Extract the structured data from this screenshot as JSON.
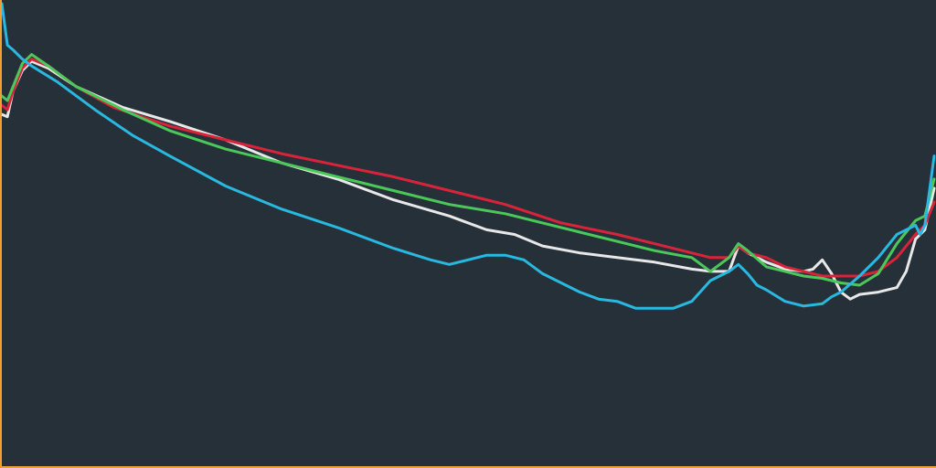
{
  "colors": {
    "background": "#263038",
    "axis": "#f0a030"
  },
  "chart_data": {
    "type": "line",
    "title": "",
    "xlabel": "",
    "ylabel": "",
    "grid": false,
    "legend": "none",
    "xlim": [
      0,
      100
    ],
    "ylim": [
      0,
      100
    ],
    "series": [
      {
        "color": "#e8e8e8",
        "points": [
          [
            0,
            76
          ],
          [
            0.6,
            75.5
          ],
          [
            1.2,
            81
          ],
          [
            2.2,
            85.5
          ],
          [
            3.2,
            87.5
          ],
          [
            5,
            86
          ],
          [
            8,
            82
          ],
          [
            13,
            77.5
          ],
          [
            18,
            74.5
          ],
          [
            24,
            70.5
          ],
          [
            30,
            65.5
          ],
          [
            36,
            62
          ],
          [
            42,
            57.5
          ],
          [
            48,
            54
          ],
          [
            52,
            51
          ],
          [
            55,
            50
          ],
          [
            58,
            47.5
          ],
          [
            62,
            46
          ],
          [
            66,
            45
          ],
          [
            70,
            44
          ],
          [
            74,
            42.5
          ],
          [
            76,
            42
          ],
          [
            78,
            42
          ],
          [
            79,
            47.5
          ],
          [
            80,
            46
          ],
          [
            82,
            44
          ],
          [
            84,
            42.5
          ],
          [
            86,
            42
          ],
          [
            87,
            42.5
          ],
          [
            88,
            44.5
          ],
          [
            89,
            41.5
          ],
          [
            90,
            37.5
          ],
          [
            91,
            36
          ],
          [
            92,
            37
          ],
          [
            94,
            37.5
          ],
          [
            96,
            38.5
          ],
          [
            97,
            42
          ],
          [
            98,
            49
          ],
          [
            99,
            51
          ],
          [
            100,
            60
          ]
        ]
      },
      {
        "color": "#d8243a",
        "points": [
          [
            0,
            78
          ],
          [
            0.6,
            77
          ],
          [
            1.2,
            81
          ],
          [
            2.2,
            86
          ],
          [
            3.2,
            88
          ],
          [
            5,
            86.5
          ],
          [
            8,
            82
          ],
          [
            12,
            77.5
          ],
          [
            18,
            73.5
          ],
          [
            24,
            70.5
          ],
          [
            30,
            67.5
          ],
          [
            36,
            65
          ],
          [
            42,
            62.5
          ],
          [
            48,
            59.5
          ],
          [
            54,
            56.5
          ],
          [
            60,
            52.5
          ],
          [
            66,
            50
          ],
          [
            70,
            48
          ],
          [
            74,
            46
          ],
          [
            76,
            45
          ],
          [
            78,
            45
          ],
          [
            79,
            47.5
          ],
          [
            80,
            46
          ],
          [
            82,
            45
          ],
          [
            84,
            43
          ],
          [
            86,
            42
          ],
          [
            88,
            41
          ],
          [
            90,
            41
          ],
          [
            92,
            41
          ],
          [
            94,
            42
          ],
          [
            96,
            45
          ],
          [
            98,
            50
          ],
          [
            99,
            52
          ],
          [
            100,
            57
          ]
        ]
      },
      {
        "color": "#4cc85a",
        "points": [
          [
            0,
            80
          ],
          [
            0.6,
            79
          ],
          [
            1.2,
            82
          ],
          [
            2.2,
            87
          ],
          [
            3.2,
            89
          ],
          [
            5,
            86.5
          ],
          [
            8,
            82
          ],
          [
            13,
            77
          ],
          [
            18,
            72.5
          ],
          [
            24,
            68.5
          ],
          [
            30,
            65.5
          ],
          [
            36,
            62.5
          ],
          [
            42,
            59.5
          ],
          [
            48,
            56.5
          ],
          [
            54,
            54.5
          ],
          [
            58,
            52.5
          ],
          [
            62,
            50.5
          ],
          [
            66,
            48.5
          ],
          [
            70,
            46.5
          ],
          [
            74,
            45
          ],
          [
            76,
            42
          ],
          [
            78,
            45
          ],
          [
            79,
            48
          ],
          [
            80,
            46.5
          ],
          [
            82,
            43
          ],
          [
            84,
            42
          ],
          [
            86,
            41
          ],
          [
            88,
            40.5
          ],
          [
            90,
            39.5
          ],
          [
            92,
            39
          ],
          [
            94,
            41.5
          ],
          [
            96,
            48
          ],
          [
            98,
            53
          ],
          [
            99,
            54
          ],
          [
            100,
            62
          ]
        ]
      },
      {
        "color": "#28b8e0",
        "points": [
          [
            0,
            100
          ],
          [
            0.6,
            91
          ],
          [
            1.2,
            90
          ],
          [
            2.2,
            88
          ],
          [
            3.2,
            86.5
          ],
          [
            6,
            83
          ],
          [
            10,
            77
          ],
          [
            14,
            71.5
          ],
          [
            18,
            67
          ],
          [
            24,
            60.5
          ],
          [
            30,
            55.5
          ],
          [
            36,
            51.5
          ],
          [
            42,
            47
          ],
          [
            46,
            44.5
          ],
          [
            48,
            43.5
          ],
          [
            50,
            44.5
          ],
          [
            52,
            45.5
          ],
          [
            54,
            45.5
          ],
          [
            56,
            44.5
          ],
          [
            58,
            41.5
          ],
          [
            60,
            39.5
          ],
          [
            62,
            37.5
          ],
          [
            64,
            36
          ],
          [
            66,
            35.5
          ],
          [
            68,
            34
          ],
          [
            70,
            34
          ],
          [
            72,
            34
          ],
          [
            74,
            35.5
          ],
          [
            76,
            40
          ],
          [
            78,
            42
          ],
          [
            79,
            43.5
          ],
          [
            80,
            41.5
          ],
          [
            81,
            39
          ],
          [
            82,
            38
          ],
          [
            84,
            35.5
          ],
          [
            86,
            34.5
          ],
          [
            88,
            35
          ],
          [
            89,
            36.5
          ],
          [
            90,
            37.5
          ],
          [
            92,
            41
          ],
          [
            94,
            45
          ],
          [
            96,
            50
          ],
          [
            98,
            52
          ],
          [
            98.5,
            50
          ],
          [
            99,
            52
          ],
          [
            100,
            67
          ]
        ]
      }
    ]
  }
}
